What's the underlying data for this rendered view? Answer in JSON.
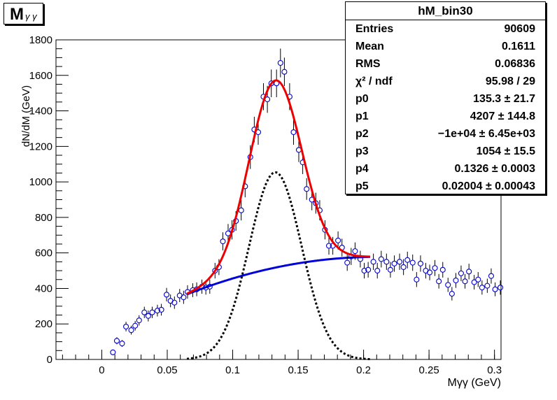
{
  "histogram": {
    "title": "M",
    "title_sub": "γ γ",
    "stats": {
      "name": "hM_bin30",
      "rows": [
        {
          "label": "Entries",
          "value": "90609"
        },
        {
          "label": "Mean",
          "value": "0.1611"
        },
        {
          "label": "RMS",
          "value": "0.06836"
        },
        {
          "label": "χ² / ndf",
          "value": "95.98 / 29"
        },
        {
          "label": "p0",
          "value": "135.3 ± 21.7"
        },
        {
          "label": "p1",
          "value": "4207 ± 144.8"
        },
        {
          "label": "p2",
          "value": "−1e+04 ± 6.45e+03"
        },
        {
          "label": "p3",
          "value": "1054 ± 15.5"
        },
        {
          "label": "p4",
          "value": "0.1326 ± 0.0003"
        },
        {
          "label": "p5",
          "value": "0.02004 ± 0.00043"
        }
      ]
    }
  },
  "chart_data": {
    "type": "scatter",
    "xlabel": "Mγγ (GeV)",
    "ylabel": "dN/dM (GeV)",
    "xlim": [
      -0.035,
      0.305
    ],
    "ylim": [
      0,
      1800
    ],
    "xticks": [
      0,
      0.05,
      0.1,
      0.15,
      0.2,
      0.25,
      0.3
    ],
    "xtick_labels": [
      "0",
      "0.05",
      "0.1",
      "0.15",
      "0.2",
      "0.25",
      "0.3"
    ],
    "yticks": [
      0,
      200,
      400,
      600,
      800,
      1000,
      1200,
      1400,
      1600,
      1800
    ],
    "ytick_labels": [
      "0",
      "200",
      "400",
      "600",
      "800",
      "1000",
      "1200",
      "1400",
      "1600",
      "1800"
    ],
    "colors": {
      "points": "#0000cc",
      "total_fit": "#ee0000",
      "background_fit": "#0000dd",
      "signal_fit": "#000000"
    },
    "fit_range": [
      0.065,
      0.205
    ],
    "points": {
      "x": [
        0.0085,
        0.0115,
        0.0155,
        0.0185,
        0.0225,
        0.0255,
        0.0285,
        0.0325,
        0.0355,
        0.0385,
        0.0425,
        0.0455,
        0.0495,
        0.0525,
        0.0555,
        0.0595,
        0.0625,
        0.0655,
        0.0695,
        0.0725,
        0.0765,
        0.0795,
        0.0825,
        0.0865,
        0.0895,
        0.0925,
        0.0965,
        0.0995,
        0.1025,
        0.1065,
        0.1095,
        0.1135,
        0.1165,
        0.1195,
        0.1235,
        0.1265,
        0.1295,
        0.1335,
        0.1365,
        0.1395,
        0.1435,
        0.1465,
        0.1505,
        0.1535,
        0.1565,
        0.1605,
        0.1635,
        0.1665,
        0.1705,
        0.1735,
        0.1765,
        0.1805,
        0.1835,
        0.1875,
        0.1905,
        0.1935,
        0.1975,
        0.2005,
        0.2035,
        0.2075,
        0.2105,
        0.2135,
        0.2175,
        0.2205,
        0.2235,
        0.2275,
        0.2305,
        0.2335,
        0.2375,
        0.2405,
        0.2435,
        0.2475,
        0.2505,
        0.2545,
        0.2575,
        0.2605,
        0.2645,
        0.2675,
        0.2705,
        0.2745,
        0.2775,
        0.2805,
        0.2845,
        0.2875,
        0.2905,
        0.2945,
        0.2975,
        0.3005,
        0.3045
      ],
      "y": [
        40,
        105,
        90,
        185,
        165,
        190,
        220,
        265,
        245,
        265,
        275,
        280,
        365,
        330,
        320,
        360,
        350,
        380,
        390,
        395,
        410,
        405,
        410,
        500,
        520,
        665,
        710,
        730,
        780,
        840,
        975,
        1140,
        1295,
        1280,
        1480,
        1465,
        1555,
        1555,
        1670,
        1620,
        1480,
        1280,
        1180,
        1110,
        960,
        900,
        880,
        840,
        730,
        640,
        640,
        670,
        630,
        545,
        580,
        610,
        565,
        500,
        505,
        550,
        500,
        565,
        550,
        505,
        540,
        550,
        520,
        560,
        545,
        450,
        540,
        500,
        490,
        515,
        440,
        505,
        420,
        370,
        445,
        485,
        440,
        495,
        435,
        450,
        405,
        415,
        470,
        395,
        405
      ],
      "err": [
        12,
        20,
        19,
        27,
        25,
        27,
        29,
        32,
        31,
        32,
        33,
        33,
        38,
        36,
        35,
        37,
        37,
        38,
        39,
        39,
        40,
        40,
        40,
        44,
        45,
        51,
        53,
        54,
        55,
        57,
        62,
        67,
        72,
        71,
        76,
        76,
        78,
        78,
        81,
        80,
        76,
        71,
        68,
        66,
        61,
        60,
        59,
        57,
        54,
        50,
        50,
        51,
        50,
        46,
        48,
        49,
        47,
        44,
        44,
        46,
        44,
        47,
        46,
        44,
        46,
        46,
        45,
        47,
        46,
        42,
        46,
        44,
        44,
        45,
        41,
        44,
        40,
        38,
        42,
        44,
        41,
        44,
        41,
        42,
        40,
        40,
        43,
        39,
        40
      ]
    },
    "model": {
      "background": "p0 + p1*x + p2*x^2",
      "signal": "p3*exp(-0.5*((x-p4)/p5)^2)",
      "p0": 135.3,
      "p1": 4207,
      "p2": -10000,
      "p3": 1054,
      "p4": 0.1326,
      "p5": 0.02004
    },
    "grid": false,
    "legend": "none"
  }
}
